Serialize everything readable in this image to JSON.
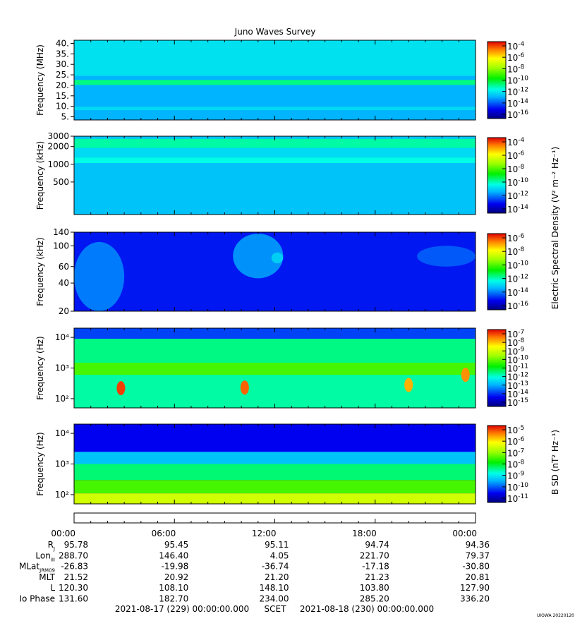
{
  "title": "Juno Waves Survey",
  "footer": {
    "start": "2021-08-17 (229) 00:00:00.000",
    "scet": "SCET",
    "end": "2021-08-18 (230) 00:00:00.000",
    "credit": "UIOWA 20220120"
  },
  "colorbar_labels": {
    "electric": "Electric Spectral Density (V² m⁻² Hz⁻¹)",
    "magnetic": "B SD (nT² Hz⁻¹)"
  },
  "chart_data": [
    {
      "type": "heatmap",
      "panel": "HFR high",
      "ylabel": "Frequency (MHz)",
      "yscale": "linear",
      "ylim": [
        3.5,
        41.5
      ],
      "yticks": [
        "40.",
        "35.",
        "30.",
        "25.",
        "20.",
        "15.",
        "10.",
        "5."
      ],
      "ytick_values": [
        40,
        35,
        30,
        25,
        20,
        15,
        10,
        5
      ],
      "colorbar": {
        "min_exp": -16,
        "max_exp": -4,
        "labels": [
          "-4",
          "-6",
          "-8",
          "-10",
          "-12",
          "-14",
          "-16"
        ],
        "units": "V2 m-2 Hz-1"
      },
      "bands": [
        {
          "f0": 3.5,
          "f1": 41.5,
          "level": 0.28
        },
        {
          "f0": 8.2,
          "f1": 9.8,
          "level": 0.33
        },
        {
          "f0": 20.2,
          "f1": 22.6,
          "level": 0.44
        },
        {
          "f0": 24.5,
          "f1": 41.5,
          "level": 0.34
        }
      ]
    },
    {
      "type": "heatmap",
      "panel": "HFR low",
      "ylabel": "Frequency (kHz)",
      "yscale": "log",
      "ylim": [
        140,
        3000
      ],
      "yticks": [
        "3000",
        "2000",
        "1000",
        "500"
      ],
      "ytick_values": [
        3000,
        2000,
        1000,
        500
      ],
      "colorbar": {
        "min_exp": -15,
        "max_exp": -3,
        "labels": [
          "-4",
          "-6",
          "-8",
          "-10",
          "-12",
          "-14"
        ],
        "units": "V2 m-2 Hz-1"
      },
      "bands": [
        {
          "f0": 140,
          "f1": 3000,
          "level": 0.3
        },
        {
          "f0": 1900,
          "f1": 2700,
          "level": 0.42
        },
        {
          "f0": 1050,
          "f1": 1300,
          "level": 0.38
        },
        {
          "f0": 1300,
          "f1": 1900,
          "level": 0.33
        }
      ]
    },
    {
      "type": "heatmap",
      "panel": "LFR high",
      "ylabel": "Frequency (kHz)",
      "yscale": "log",
      "ylim": [
        20,
        140
      ],
      "yticks": [
        "140",
        "100",
        "60",
        "40",
        "20"
      ],
      "ytick_values": [
        140,
        100,
        60,
        40,
        20
      ],
      "colorbar": {
        "min_exp": -16,
        "max_exp": -6,
        "labels": [
          "-6",
          "-8",
          "-10",
          "-12",
          "-14",
          "-16"
        ],
        "units": "V2 m-2 Hz-1"
      },
      "base_level": 0.14,
      "features": [
        {
          "t0": 0.0,
          "t1": 3.0,
          "f0": 20,
          "f1": 110,
          "level": 0.26
        },
        {
          "t0": 9.5,
          "t1": 12.5,
          "f0": 45,
          "f1": 135,
          "level": 0.29
        },
        {
          "t0": 11.8,
          "t1": 12.5,
          "f0": 65,
          "f1": 85,
          "level": 0.34
        },
        {
          "t0": 20.5,
          "t1": 24.0,
          "f0": 60,
          "f1": 100,
          "level": 0.22
        }
      ]
    },
    {
      "type": "heatmap",
      "panel": "LFR low",
      "ylabel": "Frequency (Hz)",
      "yscale": "log",
      "ylim": [
        50,
        20000
      ],
      "yticks": [
        "10⁴",
        "10³",
        "10²"
      ],
      "ytick_values": [
        10000,
        1000,
        100
      ],
      "colorbar": {
        "min_exp": -15,
        "max_exp": -7,
        "labels": [
          "-7",
          "-8",
          "-9",
          "-10",
          "-11",
          "-12",
          "-13",
          "-14",
          "-15"
        ],
        "units": "V2 m-2 Hz-1"
      },
      "bands": [
        {
          "f0": 50,
          "f1": 600,
          "level": 0.42
        },
        {
          "f0": 600,
          "f1": 1500,
          "level": 0.58
        },
        {
          "f0": 1500,
          "f1": 9000,
          "level": 0.44
        },
        {
          "f0": 9000,
          "f1": 20000,
          "level": 0.18
        }
      ],
      "hotspots": [
        {
          "t": 2.8,
          "f": 220,
          "level": 0.95
        },
        {
          "t": 10.2,
          "f": 230,
          "level": 0.92
        },
        {
          "t": 20.0,
          "f": 280,
          "level": 0.85
        },
        {
          "t": 23.4,
          "f": 600,
          "level": 0.88
        }
      ]
    },
    {
      "type": "heatmap",
      "panel": "Magnetic",
      "ylabel": "Frequency (Hz)",
      "yscale": "log",
      "ylim": [
        50,
        20000
      ],
      "yticks": [
        "10⁴",
        "10³",
        "10²"
      ],
      "ytick_values": [
        10000,
        1000,
        100
      ],
      "colorbar": {
        "min_exp": -11,
        "max_exp": -4.5,
        "labels": [
          "-5",
          "-6",
          "-7",
          "-8",
          "-9",
          "-10",
          "-11"
        ],
        "units": "nT2 Hz-1"
      },
      "bands": [
        {
          "f0": 2500,
          "f1": 20000,
          "level": 0.12
        },
        {
          "f0": 1000,
          "f1": 2500,
          "level": 0.3
        },
        {
          "f0": 300,
          "f1": 1000,
          "level": 0.45
        },
        {
          "f0": 110,
          "f1": 300,
          "level": 0.58
        },
        {
          "f0": 50,
          "f1": 110,
          "level": 0.72
        }
      ]
    }
  ],
  "ephemeris": {
    "times": [
      "00:00",
      "06:00",
      "12:00",
      "18:00",
      "00:00"
    ],
    "rows": [
      {
        "label": "R",
        "sub": "J",
        "values": [
          "95.78",
          "95.45",
          "95.11",
          "94.74",
          "94.36"
        ]
      },
      {
        "label": "Lon",
        "sub": "III",
        "values": [
          "288.70",
          "146.40",
          "4.05",
          "221.70",
          "79.37"
        ]
      },
      {
        "label": "MLat",
        "sub": "JRM09",
        "values": [
          "-26.83",
          "-19.98",
          "-36.74",
          "-17.18",
          "-30.80"
        ]
      },
      {
        "label": "MLT",
        "sub": "",
        "values": [
          "21.52",
          "20.92",
          "21.20",
          "21.23",
          "20.81"
        ]
      },
      {
        "label": "L",
        "sub": "",
        "values": [
          "120.30",
          "108.10",
          "148.10",
          "103.80",
          "127.90"
        ]
      },
      {
        "label": "Io Phase",
        "sub": "",
        "values": [
          "131.60",
          "182.70",
          "234.00",
          "285.20",
          "336.20"
        ]
      }
    ]
  }
}
